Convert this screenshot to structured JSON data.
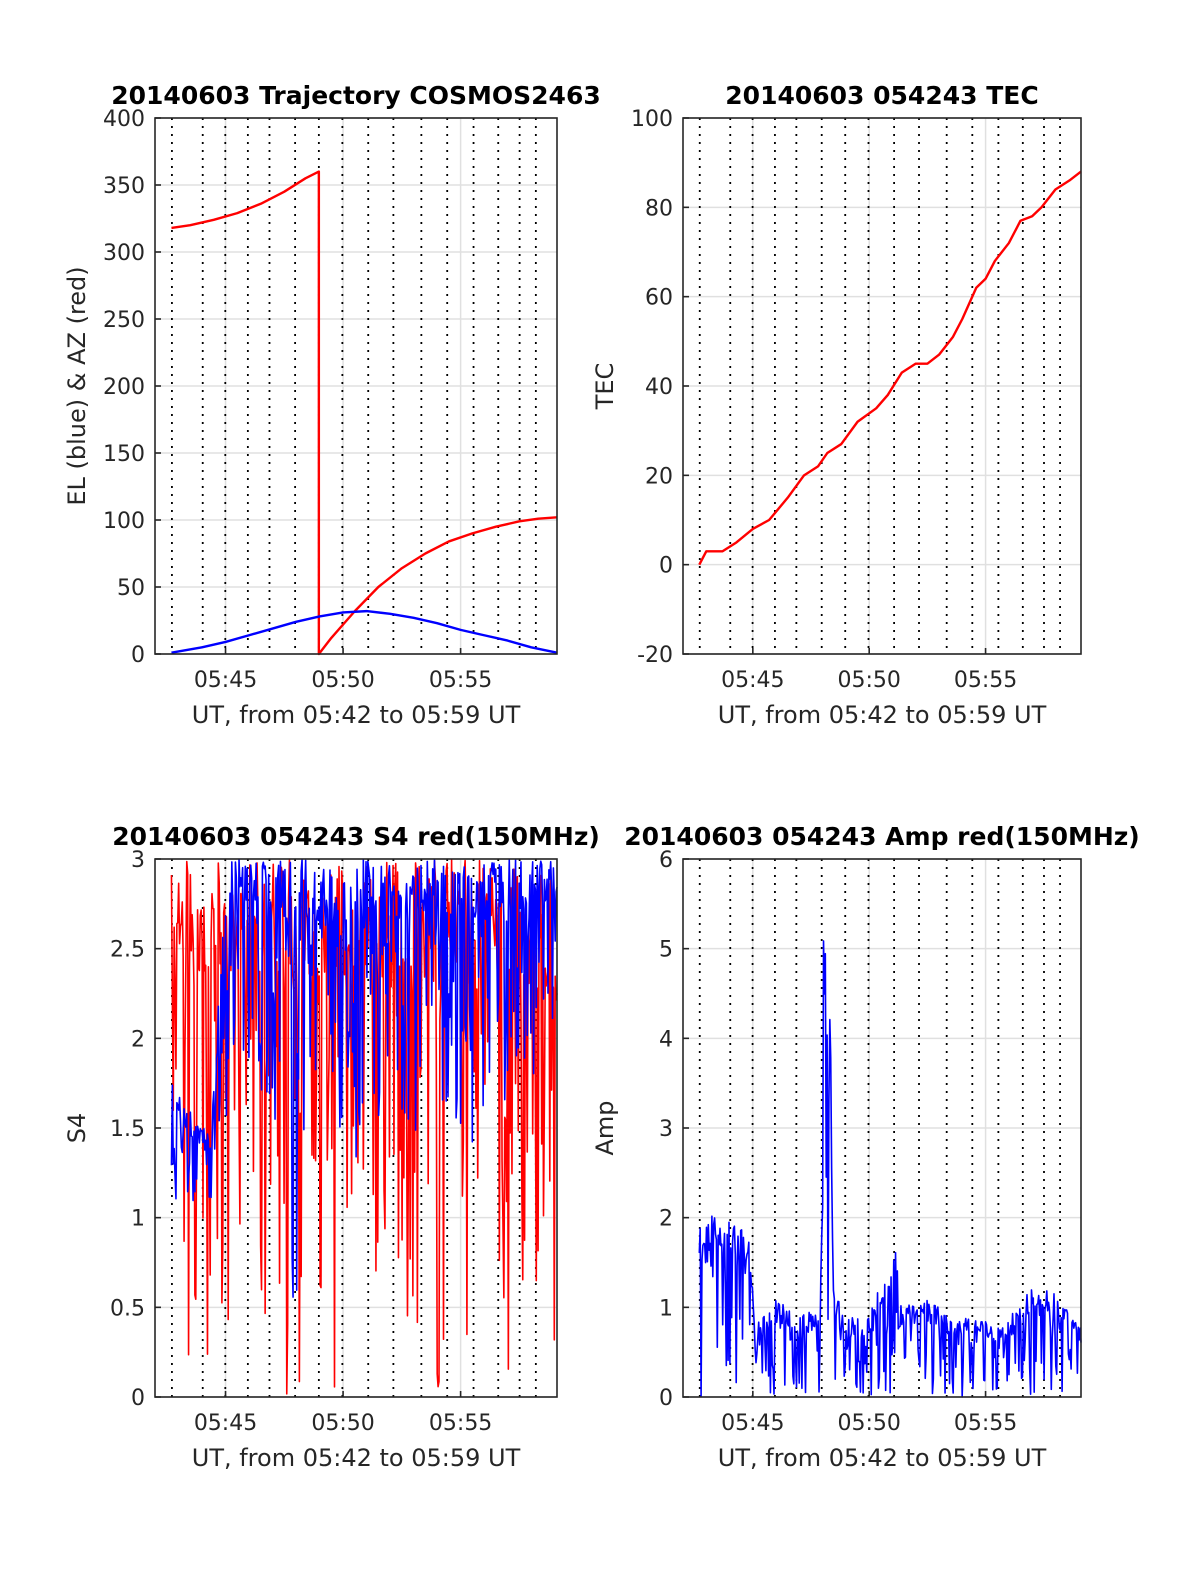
{
  "figure": {
    "background": "#ffffff",
    "grid_color": "#e0e0e0",
    "axis_color": "#262626",
    "marker_color": "#000000"
  },
  "chart_data": [
    {
      "type": "line",
      "title": "20140603 Trajectory COSMOS2463",
      "xlabel": "UT, from 05:42 to 05:59 UT",
      "ylabel": "EL (blue) & AZ (red)",
      "x_unit": "minutes after 05:00 UT",
      "xlim": [
        42.0,
        59.1
      ],
      "ylim": [
        0,
        400
      ],
      "yticks": [
        0,
        50,
        100,
        150,
        200,
        250,
        300,
        350,
        400
      ],
      "xticks": [
        45,
        50,
        55
      ],
      "xtick_labels": [
        "05:45",
        "05:50",
        "05:55"
      ],
      "grid": true,
      "vertical_markers": [
        42.72,
        44.03,
        44.99,
        45.95,
        46.87,
        47.96,
        48.97,
        49.97,
        51.07,
        52.14,
        53.33,
        54.43,
        55.55,
        56.6,
        57.51,
        58.2
      ],
      "series": [
        {
          "color": "#ff0000",
          "points": [
            [
              42.7,
              318
            ],
            [
              43.5,
              320
            ],
            [
              44.5,
              324
            ],
            [
              45.5,
              329
            ],
            [
              46.5,
              336
            ],
            [
              47.5,
              345
            ],
            [
              48.4,
              355
            ],
            [
              48.97,
              360
            ],
            [
              48.97,
              0
            ],
            [
              49.5,
              12
            ],
            [
              50.5,
              32
            ],
            [
              51.5,
              50
            ],
            [
              52.5,
              64
            ],
            [
              53.5,
              75
            ],
            [
              54.5,
              84
            ],
            [
              55.5,
              90
            ],
            [
              56.5,
              95
            ],
            [
              57.5,
              99
            ],
            [
              58.3,
              101
            ],
            [
              59.1,
              102
            ]
          ]
        },
        {
          "color": "#0000ff",
          "points": [
            [
              42.7,
              1
            ],
            [
              44,
              5
            ],
            [
              45,
              9
            ],
            [
              46,
              14
            ],
            [
              47,
              19
            ],
            [
              48,
              24
            ],
            [
              49,
              28
            ],
            [
              50,
              31
            ],
            [
              51,
              32
            ],
            [
              52,
              30
            ],
            [
              53,
              27
            ],
            [
              54,
              23
            ],
            [
              55,
              18
            ],
            [
              56,
              14
            ],
            [
              57,
              10
            ],
            [
              58,
              5
            ],
            [
              59.1,
              1
            ]
          ]
        }
      ]
    },
    {
      "type": "line",
      "title": "20140603 054243 TEC",
      "xlabel": "UT, from 05:42 to 05:59 UT",
      "ylabel": "TEC",
      "x_unit": "minutes after 05:00 UT",
      "xlim": [
        42.0,
        59.1
      ],
      "ylim": [
        -20,
        100
      ],
      "yticks": [
        -20,
        0,
        20,
        40,
        60,
        80,
        100
      ],
      "xticks": [
        45,
        50,
        55
      ],
      "xtick_labels": [
        "05:45",
        "05:50",
        "05:55"
      ],
      "grid": true,
      "vertical_markers": [
        42.72,
        44.03,
        44.99,
        45.95,
        46.87,
        47.96,
        48.97,
        49.97,
        51.07,
        52.14,
        53.33,
        54.43,
        55.55,
        56.6,
        57.51,
        58.2
      ],
      "series": [
        {
          "color": "#ff0000",
          "points": [
            [
              42.7,
              0
            ],
            [
              43,
              3
            ],
            [
              43.7,
              3
            ],
            [
              44.3,
              5
            ],
            [
              45,
              8
            ],
            [
              45.7,
              10
            ],
            [
              46.5,
              15
            ],
            [
              47.2,
              20
            ],
            [
              47.8,
              22
            ],
            [
              48.2,
              25
            ],
            [
              48.8,
              27
            ],
            [
              49.5,
              32
            ],
            [
              50.3,
              35
            ],
            [
              50.8,
              38
            ],
            [
              51.4,
              43
            ],
            [
              52,
              45
            ],
            [
              52.5,
              45
            ],
            [
              53,
              47
            ],
            [
              53.6,
              51
            ],
            [
              54,
              55
            ],
            [
              54.6,
              62
            ],
            [
              55,
              64
            ],
            [
              55.4,
              68
            ],
            [
              56,
              72
            ],
            [
              56.5,
              77
            ],
            [
              57,
              78
            ],
            [
              57.4,
              80
            ],
            [
              58,
              84
            ],
            [
              58.6,
              86
            ],
            [
              59.1,
              88
            ]
          ]
        }
      ]
    },
    {
      "type": "line",
      "title": "20140603 054243 S4 red(150MHz)",
      "xlabel": "UT, from 05:42 to 05:59 UT",
      "ylabel": "S4",
      "x_unit": "minutes after 05:00 UT",
      "xlim": [
        42.0,
        59.1
      ],
      "ylim": [
        0,
        3
      ],
      "yticks": [
        0,
        0.5,
        1,
        1.5,
        2,
        2.5,
        3
      ],
      "xticks": [
        45,
        50,
        55
      ],
      "xtick_labels": [
        "05:45",
        "05:50",
        "05:55"
      ],
      "grid": true,
      "vertical_markers": [
        42.72,
        44.03,
        44.99,
        45.95,
        46.87,
        47.96,
        48.97,
        49.97,
        51.07,
        52.14,
        53.33,
        54.43,
        55.55,
        56.6,
        57.51,
        58.2
      ],
      "series": [
        {
          "color": "#ff0000",
          "x_range": [
            42.7,
            59.1
          ],
          "envelope": [
            [
              42.7,
              0,
              3
            ],
            [
              44.8,
              0,
              3
            ],
            [
              46,
              0.5,
              3
            ],
            [
              47.5,
              0,
              3
            ],
            [
              49,
              0,
              3
            ],
            [
              50.5,
              0,
              3
            ],
            [
              52,
              0.8,
              3
            ],
            [
              53.5,
              0,
              3
            ],
            [
              55,
              0,
              3
            ],
            [
              57,
              0,
              3
            ],
            [
              59.1,
              0,
              3
            ]
          ]
        },
        {
          "color": "#0000ff",
          "x_range": [
            42.7,
            59.1
          ],
          "envelope": [
            [
              42.7,
              1.1,
              1.8
            ],
            [
              43.5,
              1.0,
              1.6
            ],
            [
              44.4,
              1.1,
              1.5
            ],
            [
              45,
              1.5,
              3
            ],
            [
              46,
              1.8,
              3
            ],
            [
              47,
              1.6,
              3
            ],
            [
              48,
              0.4,
              3
            ],
            [
              48.5,
              1.5,
              3
            ],
            [
              49.5,
              1.4,
              3
            ],
            [
              50.5,
              1.3,
              3
            ],
            [
              51.5,
              1.5,
              3
            ],
            [
              52.5,
              1.6,
              3
            ],
            [
              53.5,
              1.4,
              3
            ],
            [
              54.5,
              1.6,
              3
            ],
            [
              55.5,
              1.4,
              3
            ],
            [
              56.5,
              1.5,
              3
            ],
            [
              57.5,
              1.7,
              3
            ],
            [
              58.5,
              1.8,
              3
            ],
            [
              59.1,
              2.0,
              3
            ]
          ]
        }
      ]
    },
    {
      "type": "line",
      "title": "20140603 054243 Amp red(150MHz)",
      "xlabel": "UT, from 05:42 to 05:59 UT",
      "ylabel": "Amp",
      "x_unit": "minutes after 05:00 UT",
      "xlim": [
        42.0,
        59.1
      ],
      "ylim": [
        0,
        6
      ],
      "yticks": [
        0,
        1,
        2,
        3,
        4,
        5,
        6
      ],
      "xticks": [
        45,
        50,
        55
      ],
      "xtick_labels": [
        "05:45",
        "05:50",
        "05:55"
      ],
      "grid": true,
      "vertical_markers": [
        42.72,
        44.03,
        44.99,
        45.95,
        46.87,
        47.96,
        48.97,
        49.97,
        51.07,
        52.14,
        53.33,
        54.43,
        55.55,
        56.6,
        57.51,
        58.2
      ],
      "series": [
        {
          "color": "#0000ff",
          "x_range": [
            42.7,
            59.1
          ],
          "envelope": [
            [
              42.7,
              0,
              1.9
            ],
            [
              43.5,
              0,
              2.1
            ],
            [
              44.5,
              0,
              1.9
            ],
            [
              44.9,
              0,
              1.7
            ],
            [
              45.1,
              0,
              0.8
            ],
            [
              46,
              0,
              1.1
            ],
            [
              47,
              0,
              0.9
            ],
            [
              47.9,
              0,
              1.0
            ],
            [
              48.05,
              0,
              5.6
            ],
            [
              48.3,
              0,
              5.2
            ],
            [
              48.45,
              0,
              1.2
            ],
            [
              49,
              0,
              0.9
            ],
            [
              50,
              0,
              0.9
            ],
            [
              50.9,
              0,
              1.6
            ],
            [
              51.1,
              0,
              1.8
            ],
            [
              51.4,
              0,
              1.0
            ],
            [
              52.5,
              0,
              1.1
            ],
            [
              53.5,
              0,
              0.9
            ],
            [
              54.5,
              0,
              0.9
            ],
            [
              55.5,
              0,
              0.8
            ],
            [
              56.5,
              0,
              1.0
            ],
            [
              56.7,
              0,
              1.2
            ],
            [
              57.2,
              0,
              1.3
            ],
            [
              58,
              0,
              1.2
            ],
            [
              59.1,
              0,
              0.8
            ]
          ]
        }
      ]
    }
  ]
}
